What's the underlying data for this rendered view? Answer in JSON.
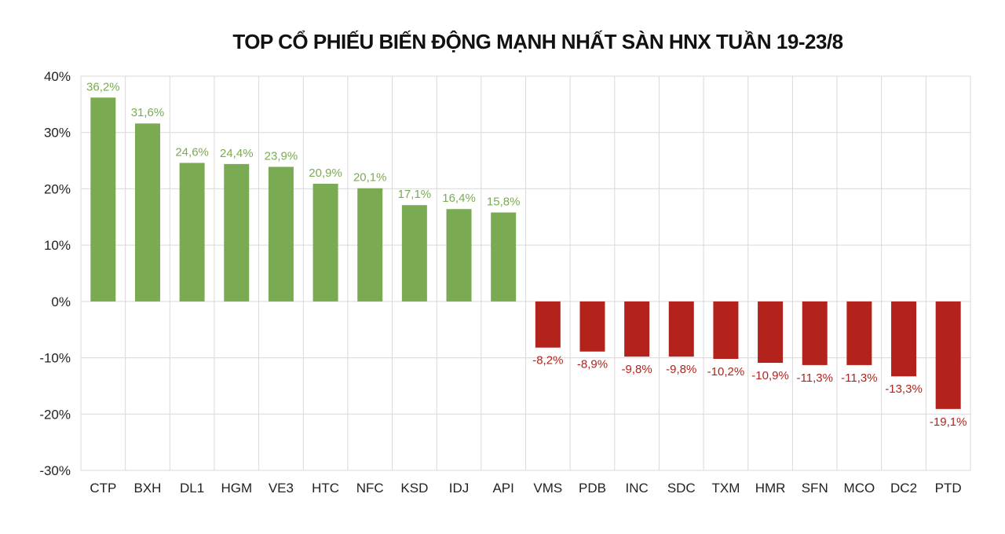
{
  "chart_data": {
    "type": "bar",
    "title": "TOP CỔ PHIẾU BIẾN ĐỘNG MẠNH NHẤT SÀN HNX TUẦN 19-23/8",
    "xlabel": "",
    "ylabel": "",
    "ylim": [
      -30,
      40
    ],
    "yticks": [
      40,
      30,
      20,
      10,
      0,
      -10,
      -20,
      -30
    ],
    "ytick_labels": [
      "40%",
      "30%",
      "20%",
      "10%",
      "0%",
      "-10%",
      "-20%",
      "-30%"
    ],
    "grid": true,
    "legend": "none",
    "categories": [
      "CTP",
      "BXH",
      "DL1",
      "HGM",
      "VE3",
      "HTC",
      "NFC",
      "KSD",
      "IDJ",
      "API",
      "VMS",
      "PDB",
      "INC",
      "SDC",
      "TXM",
      "HMR",
      "SFN",
      "MCO",
      "DC2",
      "PTD"
    ],
    "values": [
      36.2,
      31.6,
      24.6,
      24.4,
      23.9,
      20.9,
      20.1,
      17.1,
      16.4,
      15.8,
      -8.2,
      -8.9,
      -9.8,
      -9.8,
      -10.2,
      -10.9,
      -11.3,
      -11.3,
      -13.3,
      -19.1
    ],
    "value_labels": [
      "36,2%",
      "31,6%",
      "24,6%",
      "24,4%",
      "23,9%",
      "20,9%",
      "20,1%",
      "17,1%",
      "16,4%",
      "15,8%",
      "-8,2%",
      "-8,9%",
      "-9,8%",
      "-9,8%",
      "-10,2%",
      "-10,9%",
      "-11,3%",
      "-11,3%",
      "-13,3%",
      "-19,1%"
    ],
    "colors": {
      "positive": "#7aab52",
      "negative": "#b3231b",
      "grid": "#d9d9d9"
    }
  }
}
